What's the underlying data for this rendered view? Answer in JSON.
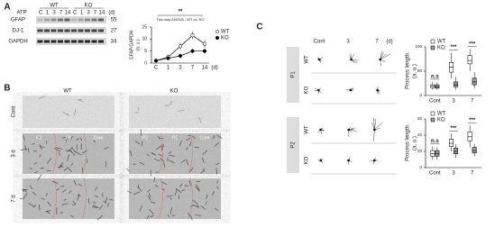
{
  "panel_labels": [
    "A",
    "B",
    "C"
  ],
  "blot": {
    "treatment": "ATP",
    "groups": [
      "WT",
      "KO"
    ],
    "lanes": [
      "C",
      "1",
      "3",
      "7",
      "14"
    ],
    "unit": "(d)",
    "proteins": [
      "GFAP",
      "DJ-1",
      "GAPDH"
    ],
    "weights": [
      "55",
      "27",
      "34"
    ]
  },
  "images": {
    "columns": [
      "WT",
      "KO"
    ],
    "rows": [
      "Cont",
      "3 d",
      "7 d"
    ],
    "regions": [
      "P2",
      "P1",
      "Core"
    ]
  },
  "cells": {
    "columns": [
      "Cont",
      "3",
      "7"
    ],
    "unit": "(d)",
    "panels": [
      "P1",
      "P2"
    ],
    "genotypes": [
      "WT",
      "KO"
    ]
  },
  "chart_data": [
    {
      "type": "line",
      "title": "**",
      "subtitle": "Two-way ANOVA - WT vs. KO",
      "y_label": "GFAP/GAPDH",
      "y_unit": "(a. u.)",
      "categories": [
        "C",
        "1",
        "3",
        "7",
        "14"
      ],
      "x_unit": "(d)",
      "ylim": [
        0,
        15
      ],
      "yticks": [
        0,
        5,
        10,
        15
      ],
      "series": [
        {
          "name": "WT",
          "color": "#ffffff",
          "values": [
            1,
            2.5,
            7,
            11.5,
            8
          ],
          "errors": [
            0.5,
            1,
            1.5,
            1.5,
            1.5
          ]
        },
        {
          "name": "KO",
          "color": "#000000",
          "values": [
            1,
            2,
            3,
            5,
            5
          ],
          "errors": [
            0.5,
            0.5,
            1,
            1,
            1
          ]
        }
      ]
    },
    {
      "type": "box",
      "y_label": "Process length",
      "y_unit": "(a. u.)",
      "categories": [
        "Cont",
        "3",
        "7"
      ],
      "ylim": [
        0,
        100
      ],
      "yticks": [
        0,
        50,
        100
      ],
      "annotations": [
        "n.s",
        "***",
        "***"
      ],
      "series": [
        {
          "name": "WT",
          "color": "#ffffff",
          "min": [
            12,
            35,
            50
          ],
          "q1": [
            16,
            48,
            65
          ],
          "median": [
            19,
            58,
            72
          ],
          "q3": [
            22,
            68,
            82
          ],
          "max": [
            28,
            88,
            95
          ]
        },
        {
          "name": "KO",
          "color": "#999999",
          "min": [
            12,
            12,
            15
          ],
          "q1": [
            15,
            18,
            22
          ],
          "median": [
            18,
            22,
            28
          ],
          "q3": [
            22,
            28,
            36
          ],
          "max": [
            27,
            38,
            48
          ]
        }
      ]
    },
    {
      "type": "box",
      "y_label": "Process length",
      "y_unit": "(a. u.)",
      "categories": [
        "Cont",
        "3",
        "7"
      ],
      "ylim": [
        0,
        60
      ],
      "yticks": [
        0,
        20,
        40,
        60
      ],
      "annotations": [
        "n.s",
        "***",
        "***"
      ],
      "series": [
        {
          "name": "WT",
          "color": "#ffffff",
          "min": [
            10,
            20,
            25
          ],
          "q1": [
            14,
            26,
            33
          ],
          "median": [
            17,
            30,
            38
          ],
          "q3": [
            21,
            35,
            44
          ],
          "max": [
            26,
            42,
            52
          ]
        },
        {
          "name": "KO",
          "color": "#999999",
          "min": [
            10,
            12,
            14
          ],
          "q1": [
            14,
            17,
            18
          ],
          "median": [
            17,
            20,
            21
          ],
          "q3": [
            21,
            24,
            25
          ],
          "max": [
            25,
            29,
            29
          ]
        }
      ]
    }
  ]
}
